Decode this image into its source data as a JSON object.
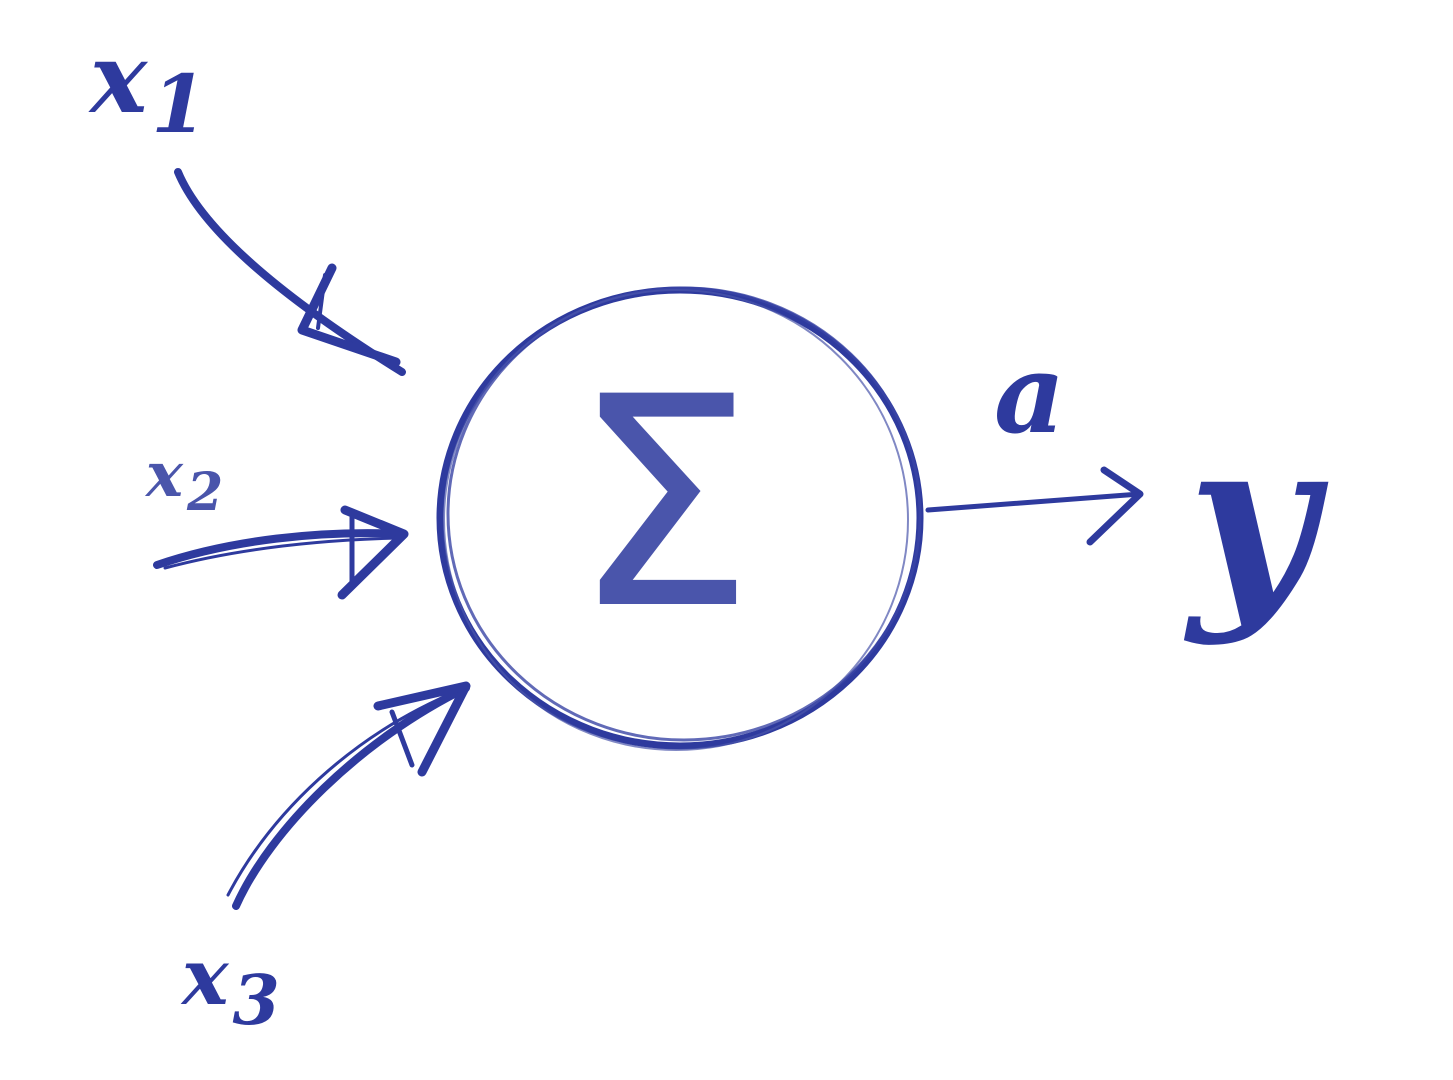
{
  "colors": {
    "ink": "#2e3a9e",
    "ink_light": "#4a55ab",
    "background": "#ffffff"
  },
  "neuron": {
    "symbol": "Σ"
  },
  "inputs": [
    {
      "var": "x",
      "sub": "1"
    },
    {
      "var": "x",
      "sub": "2"
    },
    {
      "var": "x",
      "sub": "3"
    }
  ],
  "activation_label": "a",
  "output_label": "y"
}
